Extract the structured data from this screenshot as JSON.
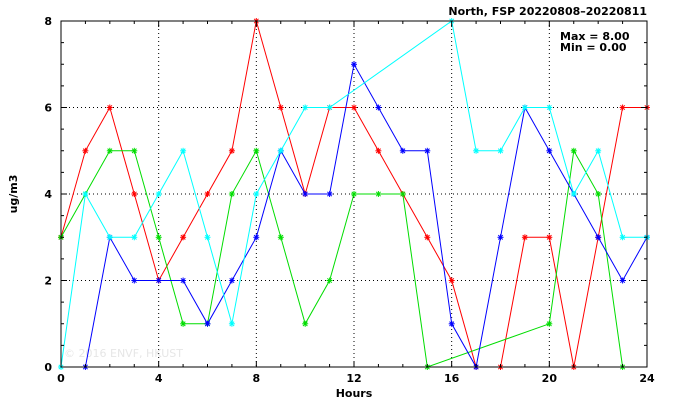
{
  "chart_data": {
    "type": "line",
    "title": "North, FSP 20220808–20220811",
    "xlabel": "Hours",
    "ylabel": "ug/m3",
    "xlim": [
      0,
      24
    ],
    "ylim": [
      0,
      8
    ],
    "xticks": [
      0,
      4,
      8,
      12,
      16,
      20,
      24
    ],
    "yticks": [
      0,
      2,
      4,
      6,
      8
    ],
    "grid": true,
    "stats": {
      "max": "Max = 8.00",
      "min": "Min = 0.00"
    },
    "watermark": "© 2016 ENVF, HKUST",
    "x": [
      0,
      1,
      2,
      3,
      4,
      5,
      6,
      7,
      8,
      9,
      10,
      11,
      12,
      13,
      14,
      15,
      16,
      17,
      18,
      19,
      20,
      21,
      22,
      23,
      24
    ],
    "series": [
      {
        "color": "#ff0000",
        "values": [
          3,
          5,
          6,
          4,
          2,
          3,
          4,
          5,
          8,
          6,
          4,
          6,
          6,
          5,
          4,
          3,
          2,
          0,
          0,
          3,
          3,
          0,
          3,
          6,
          6
        ]
      },
      {
        "color": "#00dd00",
        "values": [
          3,
          4,
          5,
          5,
          3,
          1,
          1,
          4,
          5,
          3,
          1,
          2,
          4,
          4,
          4,
          0,
          null,
          null,
          null,
          null,
          1,
          5,
          4,
          0,
          null
        ]
      },
      {
        "color": "#0000ff",
        "values": [
          null,
          0,
          3,
          2,
          2,
          2,
          1,
          2,
          3,
          5,
          4,
          4,
          7,
          6,
          5,
          5,
          1,
          0,
          3,
          6,
          5,
          4,
          3,
          2,
          3
        ]
      },
      {
        "color": "#00ffff",
        "values": [
          0,
          4,
          3,
          3,
          4,
          5,
          3,
          1,
          4,
          5,
          6,
          6,
          null,
          null,
          null,
          null,
          8,
          5,
          5,
          6,
          6,
          4,
          5,
          3,
          3
        ]
      }
    ]
  }
}
